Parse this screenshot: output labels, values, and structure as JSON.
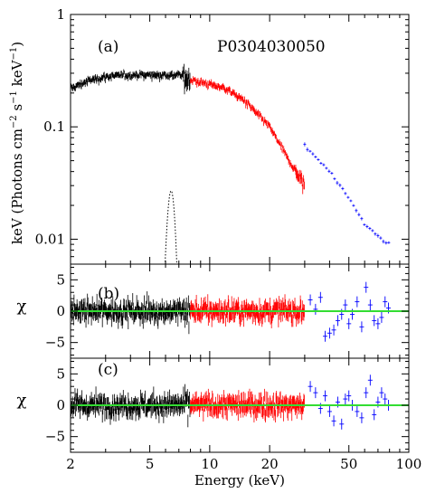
{
  "chart_data": {
    "type": "scatter",
    "xlabel": "Energy (keV)",
    "xscale": "log",
    "xlim": [
      2,
      100
    ],
    "x_ticks": [
      2,
      5,
      10,
      20,
      50,
      100
    ],
    "x_tick_labels": [
      "2",
      "5",
      "10",
      "20",
      "50",
      "100"
    ],
    "colors": {
      "seg1": "#000000",
      "seg2": "#ff0000",
      "seg3": "#0000ff",
      "zero_line": "#33dd33"
    },
    "panels": [
      {
        "label": "(a)",
        "annotation": "P0304030050",
        "ylabel": "keV (Photons cm⁻² s⁻¹ keV⁻¹)",
        "yscale": "log",
        "ylim": [
          0.006,
          1
        ],
        "y_ticks": [
          0.01,
          0.1,
          1
        ],
        "y_tick_labels": [
          "0.01",
          "0.1",
          "1"
        ],
        "series": [
          {
            "color": "#000000",
            "x_range": [
              2,
              8
            ],
            "trend": {
              "x": [
                2,
                2.5,
                3,
                4,
                5,
                6,
                7,
                8
              ],
              "y": [
                0.22,
                0.26,
                0.28,
                0.29,
                0.29,
                0.29,
                0.29,
                0.27
              ]
            }
          },
          {
            "color": "#ff0000",
            "x_range": [
              8,
              30
            ],
            "trend": {
              "x": [
                8,
                10,
                12,
                15,
                20,
                25,
                30
              ],
              "y": [
                0.26,
                0.24,
                0.22,
                0.17,
                0.1,
                0.05,
                0.03
              ]
            }
          },
          {
            "color": "#0000ff",
            "x_range": [
              30,
              80
            ],
            "trend": {
              "x": [
                30,
                35,
                40,
                50,
                60,
                70,
                80
              ],
              "y": [
                0.068,
                0.052,
                0.04,
                0.023,
                0.014,
                0.0105,
                0.009
              ]
            }
          },
          {
            "color": "#000000",
            "style": "dotted",
            "component": "gaussian line",
            "center": 6.4,
            "peak": 0.027
          }
        ]
      },
      {
        "label": "(b)",
        "ylabel": "χ",
        "ylim": [
          -7.5,
          7.5
        ],
        "y_ticks": [
          -5,
          0,
          5
        ],
        "y_tick_labels": [
          "−5",
          "0",
          "5"
        ],
        "zero_line": 0,
        "series": [
          {
            "color": "#000000",
            "x_range": [
              2,
              8
            ],
            "scatter_sigma": 1
          },
          {
            "color": "#ff0000",
            "x_range": [
              8,
              30
            ],
            "scatter_sigma": 1
          },
          {
            "color": "#0000ff",
            "points": {
              "x": [
                32,
                34,
                36,
                38,
                40,
                42,
                44,
                46,
                48,
                50,
                52,
                55,
                58,
                61,
                64,
                67,
                70,
                73,
                76,
                79
              ],
              "y": [
                1.8,
                0.3,
                2.2,
                -4.0,
                -3.5,
                -3.0,
                -1.5,
                -0.5,
                1.0,
                -2.0,
                -0.5,
                1.5,
                -2.5,
                3.8,
                1.0,
                -1.5,
                -2.0,
                -1.0,
                1.5,
                0.5
              ]
            }
          }
        ]
      },
      {
        "label": "(c)",
        "ylabel": "χ",
        "ylim": [
          -7.5,
          7.5
        ],
        "y_ticks": [
          -5,
          0,
          5
        ],
        "y_tick_labels": [
          "−5",
          "0",
          "5"
        ],
        "zero_line": 0,
        "series": [
          {
            "color": "#000000",
            "x_range": [
              2,
              8
            ],
            "scatter_sigma": 1
          },
          {
            "color": "#ff0000",
            "x_range": [
              8,
              30
            ],
            "scatter_sigma": 1
          },
          {
            "color": "#0000ff",
            "points": {
              "x": [
                32,
                34,
                36,
                38,
                40,
                42,
                44,
                46,
                48,
                50,
                52,
                55,
                58,
                61,
                64,
                67,
                70,
                73,
                76,
                79
              ],
              "y": [
                3.0,
                2.0,
                -0.5,
                1.5,
                -1.0,
                -2.5,
                0.5,
                -3.0,
                1.0,
                1.5,
                0.0,
                -1.0,
                -2.0,
                2.0,
                4.0,
                -1.5,
                0.5,
                2.0,
                1.0,
                0.0
              ]
            }
          }
        ]
      }
    ]
  }
}
